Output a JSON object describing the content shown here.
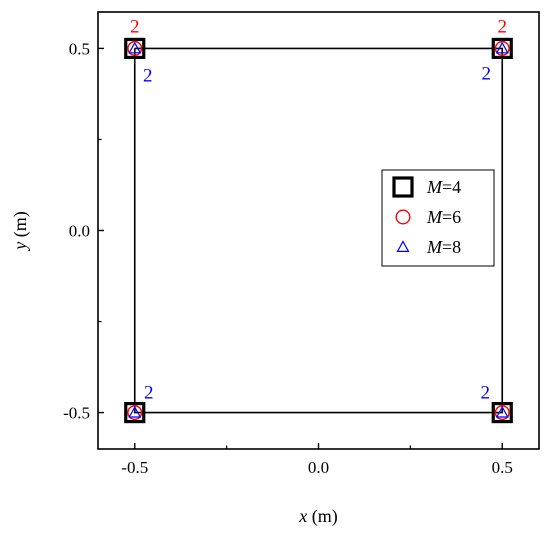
{
  "chart_data": {
    "type": "scatter",
    "title": "",
    "xlabel": {
      "var": "x",
      "unit": " (m)"
    },
    "ylabel": {
      "var": "y",
      "unit": " (m)"
    },
    "xlim": [
      -0.6,
      0.6
    ],
    "ylim": [
      -0.6,
      0.6
    ],
    "xticks": [
      -0.5,
      0.0,
      0.5
    ],
    "yticks": [
      -0.5,
      0.0,
      0.5
    ],
    "xtick_labels": [
      "-0.5",
      "0.0",
      "0.5"
    ],
    "ytick_labels": [
      "-0.5",
      "0.0",
      "0.5"
    ],
    "grid": false,
    "legend_position": "right",
    "outline": {
      "x": [
        -0.5,
        0.5,
        0.5,
        -0.5,
        -0.5
      ],
      "y": [
        0.5,
        0.5,
        -0.5,
        -0.5,
        0.5
      ]
    },
    "series": [
      {
        "name": "M=4",
        "name_var": "M",
        "name_val": "=4",
        "marker": "square",
        "color": "#000000",
        "x": [
          -0.5,
          0.5,
          -0.5,
          0.5
        ],
        "y": [
          0.5,
          0.5,
          -0.5,
          -0.5
        ]
      },
      {
        "name": "M=6",
        "name_var": "M",
        "name_val": "=6",
        "marker": "circle",
        "color": "#ff0000",
        "x": [
          -0.5,
          0.5,
          -0.5,
          0.5
        ],
        "y": [
          0.5,
          0.5,
          -0.5,
          -0.5
        ]
      },
      {
        "name": "M=8",
        "name_var": "M",
        "name_val": "=8",
        "marker": "triangle",
        "color": "#0000ff",
        "x": [
          -0.5,
          0.5,
          -0.5,
          0.5
        ],
        "y": [
          0.5,
          0.5,
          -0.5,
          -0.5
        ]
      }
    ],
    "annotations": [
      {
        "text": "2",
        "color": "#ff0000",
        "x": -0.5,
        "y": 0.5,
        "anchor": "above"
      },
      {
        "text": "2",
        "color": "#ff0000",
        "x": 0.5,
        "y": 0.5,
        "anchor": "above"
      },
      {
        "text": "2",
        "color": "#0000ff",
        "x": -0.5,
        "y": 0.5,
        "anchor": "below-right"
      },
      {
        "text": "2",
        "color": "#0000ff",
        "x": 0.5,
        "y": 0.5,
        "anchor": "below-left"
      },
      {
        "text": "2",
        "color": "#0000ff",
        "x": -0.5,
        "y": -0.5,
        "anchor": "above-right"
      },
      {
        "text": "2",
        "color": "#0000ff",
        "x": 0.5,
        "y": -0.5,
        "anchor": "above-left"
      }
    ]
  }
}
